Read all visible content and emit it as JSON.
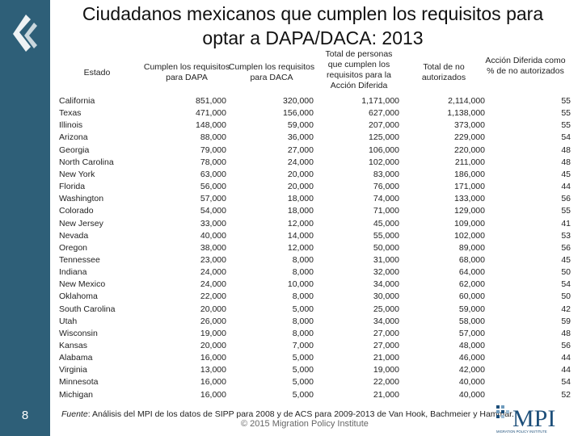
{
  "title": {
    "line1": "Ciudadanos mexicanos que cumplen los requisitos para",
    "line2": "optar a DAPA/DACA: 2013"
  },
  "page_number": "8",
  "table": {
    "headers": {
      "state": "Estado",
      "dapa": "Cumplen los requisitos para DAPA",
      "daca": "Cumplen los requisitos para DACA",
      "total_deferred": "Total de personas que cumplen los requisitos para la Acción Diferida",
      "total_unauthorized": "Total de no autorizados",
      "percent": "Acción Diferida como % de no autorizados"
    },
    "rows": [
      [
        "California",
        "851,000",
        "320,000",
        "1,171,000",
        "2,114,000",
        "55"
      ],
      [
        "Texas",
        "471,000",
        "156,000",
        "627,000",
        "1,138,000",
        "55"
      ],
      [
        "Illinois",
        "148,000",
        "59,000",
        "207,000",
        "373,000",
        "55"
      ],
      [
        "Arizona",
        "88,000",
        "36,000",
        "125,000",
        "229,000",
        "54"
      ],
      [
        "Georgia",
        "79,000",
        "27,000",
        "106,000",
        "220,000",
        "48"
      ],
      [
        "North Carolina",
        "78,000",
        "24,000",
        "102,000",
        "211,000",
        "48"
      ],
      [
        "New York",
        "63,000",
        "20,000",
        "83,000",
        "186,000",
        "45"
      ],
      [
        "Florida",
        "56,000",
        "20,000",
        "76,000",
        "171,000",
        "44"
      ],
      [
        "Washington",
        "57,000",
        "18,000",
        "74,000",
        "133,000",
        "56"
      ],
      [
        "Colorado",
        "54,000",
        "18,000",
        "71,000",
        "129,000",
        "55"
      ],
      [
        "New Jersey",
        "33,000",
        "12,000",
        "45,000",
        "109,000",
        "41"
      ],
      [
        "Nevada",
        "40,000",
        "14,000",
        "55,000",
        "102,000",
        "53"
      ],
      [
        "Oregon",
        "38,000",
        "12,000",
        "50,000",
        "89,000",
        "56"
      ],
      [
        "Tennessee",
        "23,000",
        "8,000",
        "31,000",
        "68,000",
        "45"
      ],
      [
        "Indiana",
        "24,000",
        "8,000",
        "32,000",
        "64,000",
        "50"
      ],
      [
        "New Mexico",
        "24,000",
        "10,000",
        "34,000",
        "62,000",
        "54"
      ],
      [
        "Oklahoma",
        "22,000",
        "8,000",
        "30,000",
        "60,000",
        "50"
      ],
      [
        "South Carolina",
        "20,000",
        "5,000",
        "25,000",
        "59,000",
        "42"
      ],
      [
        "Utah",
        "26,000",
        "8,000",
        "34,000",
        "58,000",
        "59"
      ],
      [
        "Wisconsin",
        "19,000",
        "8,000",
        "27,000",
        "57,000",
        "48"
      ],
      [
        "Kansas",
        "20,000",
        "7,000",
        "27,000",
        "48,000",
        "56"
      ],
      [
        "Alabama",
        "16,000",
        "5,000",
        "21,000",
        "46,000",
        "44"
      ],
      [
        "Virginia",
        "13,000",
        "5,000",
        "19,000",
        "42,000",
        "44"
      ],
      [
        "Minnesota",
        "16,000",
        "5,000",
        "22,000",
        "40,000",
        "54"
      ],
      [
        "Michigan",
        "16,000",
        "5,000",
        "21,000",
        "40,000",
        "52"
      ]
    ]
  },
  "source": {
    "label": "Fuente",
    "text": ": Análisis del MPI de los datos de SIPP para 2008 y de ACS para 2009-2013 de Van Hook, Bachmeier y Hammar."
  },
  "copyright": "© 2015 Migration Policy Institute",
  "logo": {
    "text": "MPI",
    "subtext": "MIGRATION POLICY INSTITUTE"
  },
  "colors": {
    "sidebar": "#2e5f78",
    "logo_blue": "#1d4f7a"
  }
}
